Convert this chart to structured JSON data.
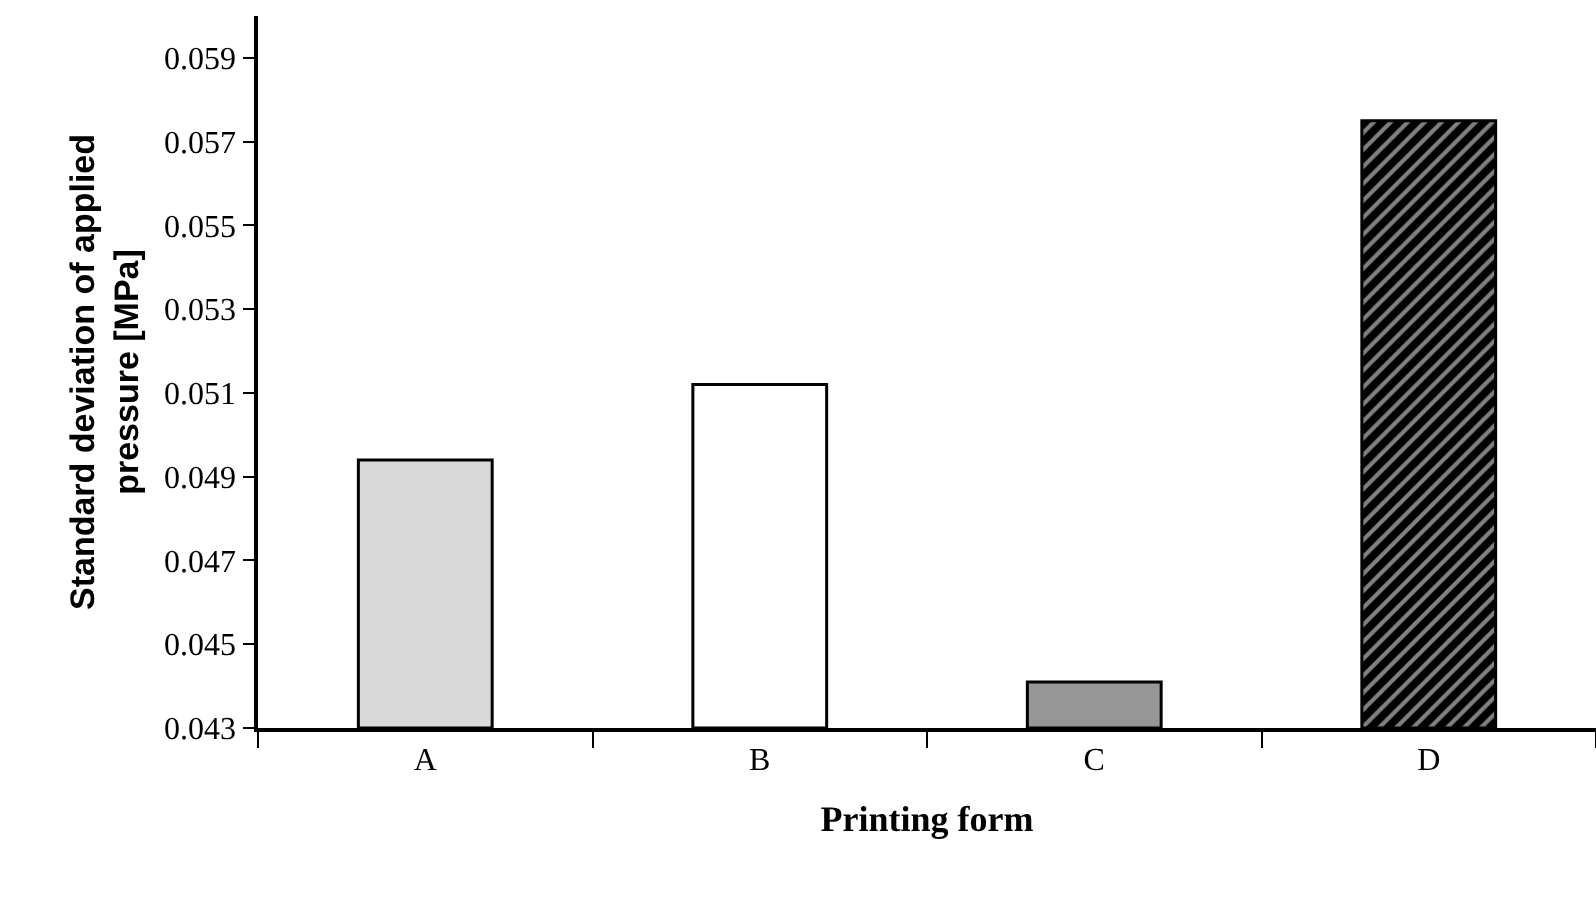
{
  "chart_data": {
    "type": "bar",
    "xlabel": "Printing form",
    "ylabel": "Standard deviation of applied pressure [MPa]",
    "categories": [
      "A",
      "B",
      "C",
      "D"
    ],
    "values": [
      0.0494,
      0.0512,
      0.0441,
      0.0575
    ],
    "colors": [
      "#d9d9d9",
      "#ffffff",
      "#969696",
      "#000000"
    ],
    "ylim": [
      0.043,
      0.06
    ],
    "yticks": [
      0.043,
      0.045,
      0.047,
      0.049,
      0.051,
      0.053,
      0.055,
      0.057,
      0.059
    ],
    "legend": false
  }
}
